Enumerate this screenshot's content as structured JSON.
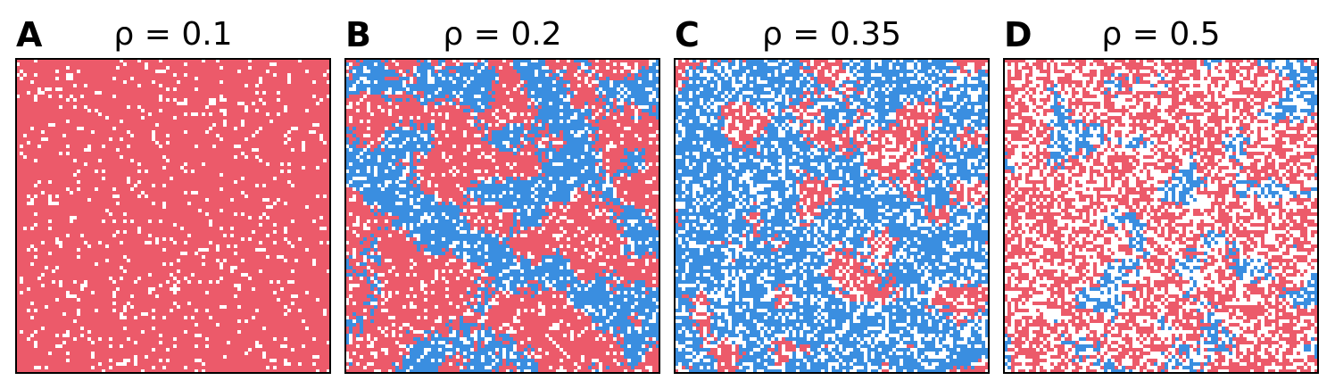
{
  "panels": [
    {
      "label": "A",
      "title": "ρ = 0.1"
    },
    {
      "label": "B",
      "title": "ρ = 0.2"
    },
    {
      "label": "C",
      "title": "ρ = 0.35"
    },
    {
      "label": "D",
      "title": "ρ = 0.5"
    }
  ]
}
